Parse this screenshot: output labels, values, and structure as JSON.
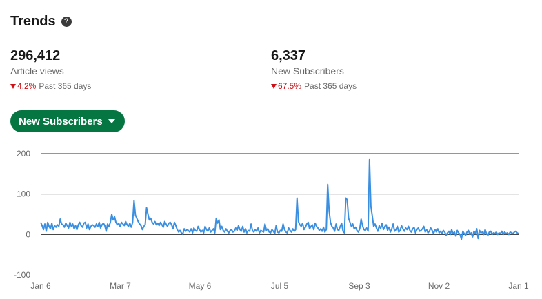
{
  "header": {
    "title": "Trends",
    "help_icon": "question-circle-icon"
  },
  "metrics": [
    {
      "value": "296,412",
      "label": "Article views",
      "change": "4.2%",
      "period": "Past 365 days",
      "direction": "down"
    },
    {
      "value": "6,337",
      "label": "New Subscribers",
      "change": "67.5%",
      "period": "Past 365 days",
      "direction": "down"
    }
  ],
  "dropdown": {
    "label": "New Subscribers",
    "icon": "caret-down-icon"
  },
  "colors": {
    "accent": "#057642",
    "line": "#3b8fe0",
    "negative": "#cc1016"
  },
  "chart_data": {
    "type": "line",
    "title": "",
    "xlabel": "",
    "ylabel": "",
    "ylim": [
      -100,
      200
    ],
    "yticks": [
      -100,
      0,
      100,
      200
    ],
    "x_tick_labels": [
      "Jan 6",
      "Mar 7",
      "May 6",
      "Jul 5",
      "Sep 3",
      "Nov 2",
      "Jan 1"
    ],
    "x_tick_days": [
      0,
      60,
      120,
      180,
      240,
      300,
      360
    ],
    "grid": true,
    "series": [
      {
        "name": "",
        "values": [
          30,
          22,
          12,
          26,
          8,
          30,
          20,
          14,
          28,
          12,
          22,
          18,
          24,
          20,
          38,
          26,
          24,
          18,
          28,
          22,
          16,
          30,
          20,
          26,
          14,
          22,
          12,
          24,
          30,
          22,
          18,
          28,
          30,
          16,
          26,
          12,
          20,
          24,
          22,
          18,
          26,
          20,
          30,
          16,
          24,
          28,
          22,
          8,
          26,
          20,
          30,
          50,
          36,
          44,
          30,
          24,
          28,
          20,
          30,
          26,
          22,
          32,
          24,
          20,
          28,
          18,
          30,
          84,
          48,
          40,
          32,
          26,
          22,
          12,
          20,
          24,
          66,
          50,
          36,
          40,
          30,
          26,
          32,
          24,
          28,
          22,
          30,
          24,
          18,
          32,
          26,
          20,
          28,
          30,
          24,
          14,
          30,
          22,
          12,
          6,
          10,
          4,
          1,
          14,
          8,
          12,
          10,
          6,
          14,
          4,
          16,
          10,
          8,
          20,
          12,
          6,
          10,
          4,
          20,
          12,
          8,
          16,
          6,
          10,
          14,
          4,
          40,
          28,
          36,
          12,
          20,
          10,
          6,
          14,
          8,
          4,
          10,
          12,
          6,
          8,
          16,
          10,
          22,
          12,
          8,
          20,
          6,
          14,
          4,
          10,
          8,
          26,
          10,
          6,
          12,
          8,
          16,
          4,
          10,
          8,
          6,
          26,
          10,
          14,
          6,
          4,
          12,
          8,
          2,
          22,
          6,
          4,
          10,
          8,
          26,
          12,
          6,
          4,
          16,
          10,
          6,
          14,
          8,
          12,
          90,
          32,
          24,
          20,
          28,
          12,
          18,
          26,
          30,
          14,
          20,
          24,
          12,
          28,
          20,
          16,
          10,
          14,
          8,
          18,
          6,
          12,
          124,
          60,
          30,
          20,
          16,
          8,
          26,
          12,
          10,
          20,
          28,
          8,
          4,
          90,
          86,
          40,
          30,
          20,
          26,
          14,
          18,
          10,
          6,
          14,
          38,
          22,
          12,
          10,
          16,
          8,
          185,
          70,
          46,
          20,
          26,
          16,
          8,
          22,
          14,
          28,
          12,
          20,
          24,
          10,
          18,
          6,
          14,
          26,
          8,
          12,
          20,
          6,
          10,
          22,
          14,
          8,
          16,
          12,
          20,
          10,
          6,
          14,
          18,
          4,
          12,
          16,
          8,
          10,
          14,
          20,
          6,
          12,
          4,
          8,
          16,
          10,
          2,
          12,
          6,
          14,
          4,
          8,
          2,
          10,
          6,
          -2,
          4,
          8,
          0,
          12,
          2,
          6,
          -4,
          10,
          4,
          0,
          -12,
          8,
          2,
          -2,
          6,
          10,
          0,
          4,
          -6,
          8,
          2,
          14,
          -10,
          10,
          4,
          6,
          0,
          12,
          2,
          -2,
          6,
          8,
          0,
          4,
          2,
          6,
          0,
          4,
          2,
          8,
          0,
          6,
          2,
          4,
          0,
          6,
          4,
          2,
          6,
          8,
          4,
          2
        ]
      }
    ]
  }
}
